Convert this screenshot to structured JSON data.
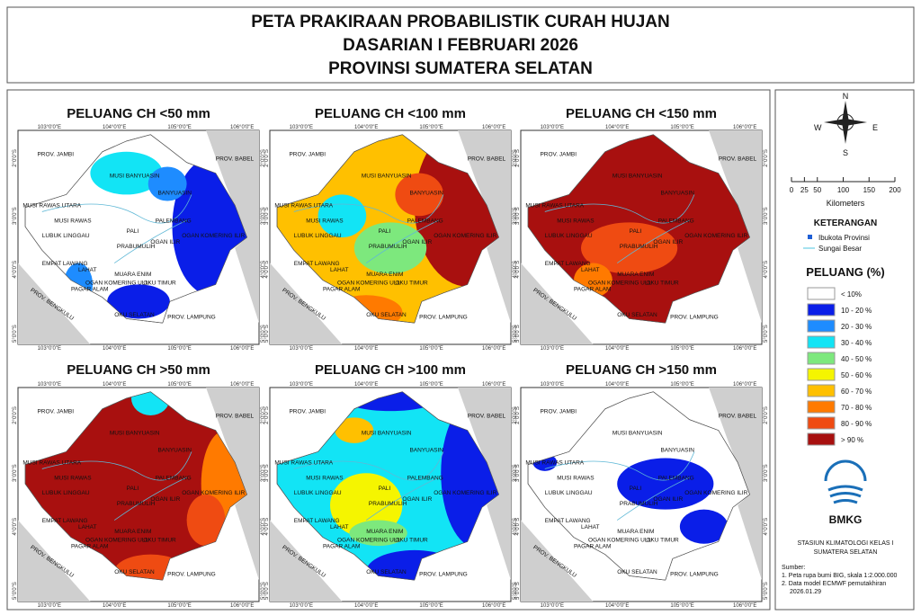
{
  "header": {
    "title_lines": [
      "PETA PRAKIRAAN PROBABILISTIK CURAH HUJAN",
      "DASARIAN I FEBRUARI 2026",
      "PROVINSI SUMATERA SELATAN"
    ]
  },
  "map_labels": {
    "longitudes": [
      "103°0'0\"E",
      "104°0'0\"E",
      "105°0'0\"E",
      "106°0'0\"E"
    ],
    "latitudes": [
      "2°0'0\"S",
      "3°0'0\"S",
      "4°0'0\"S",
      "5°0'0\"S"
    ],
    "regions": [
      "PROV. JAMBI",
      "PROV. BABEL",
      "MUSI BANYUASIN",
      "BANYUASIN",
      "MUSI RAWAS UTARA",
      "MUSI RAWAS",
      "PALI",
      "PALEMBANG",
      "LUBUK LINGGAU",
      "PRABUMULIH",
      "OGAN ILIR",
      "OGAN KOMERING ILIR",
      "EMPAT LAWANG",
      "LAHAT",
      "MUARA ENIM",
      "PAGAR ALAM",
      "OGAN KOMERING ULU",
      "OKU TIMUR",
      "PROV. BENGKULU",
      "OKU SELATAN",
      "PROV. LAMPUNG"
    ]
  },
  "panels": [
    {
      "title": "PELUANG CH <50 mm"
    },
    {
      "title": "PELUANG CH <100 mm"
    },
    {
      "title": "PELUANG CH <150 mm"
    },
    {
      "title": "PELUANG CH >50 mm"
    },
    {
      "title": "PELUANG CH >100 mm"
    },
    {
      "title": "PELUANG CH >150 mm"
    }
  ],
  "legend": {
    "compass": {
      "north": "N",
      "south": "S",
      "east": "E",
      "west": "W"
    },
    "scale": {
      "ticks": [
        0,
        25,
        50,
        100,
        150,
        200
      ],
      "unit": "Kilometers"
    },
    "keterangan": {
      "title": "KETERANGAN",
      "items": [
        "Ibukota Provinsi",
        "Sungai Besar"
      ]
    },
    "peluang": {
      "title": "PELUANG (%)",
      "classes": [
        {
          "label": "< 10%",
          "color": "#ffffff"
        },
        {
          "label": "10 - 20 %",
          "color": "#0a1ee8"
        },
        {
          "label": "20 - 30 %",
          "color": "#1e8cff"
        },
        {
          "label": "30 - 40 %",
          "color": "#12e4f5"
        },
        {
          "label": "40 - 50 %",
          "color": "#7de87d"
        },
        {
          "label": "50 - 60 %",
          "color": "#f5f500"
        },
        {
          "label": "60 - 70 %",
          "color": "#ffc000"
        },
        {
          "label": "70 - 80 %",
          "color": "#ff7a00"
        },
        {
          "label": "80 - 90 %",
          "color": "#ef4b12"
        },
        {
          "label": "> 90 %",
          "color": "#a8100f"
        }
      ]
    },
    "logo": "BMKG",
    "station": [
      "STASIUN KLIMATOLOGI KELAS I",
      "SUMATERA SELATAN"
    ],
    "source": {
      "title": "Sumber:",
      "items": [
        "1. Peta rupa bumi BIG, skala 1:2.000.000",
        "2. Data model ECMWF pemutakhiran",
        "2026.01.29"
      ]
    }
  }
}
